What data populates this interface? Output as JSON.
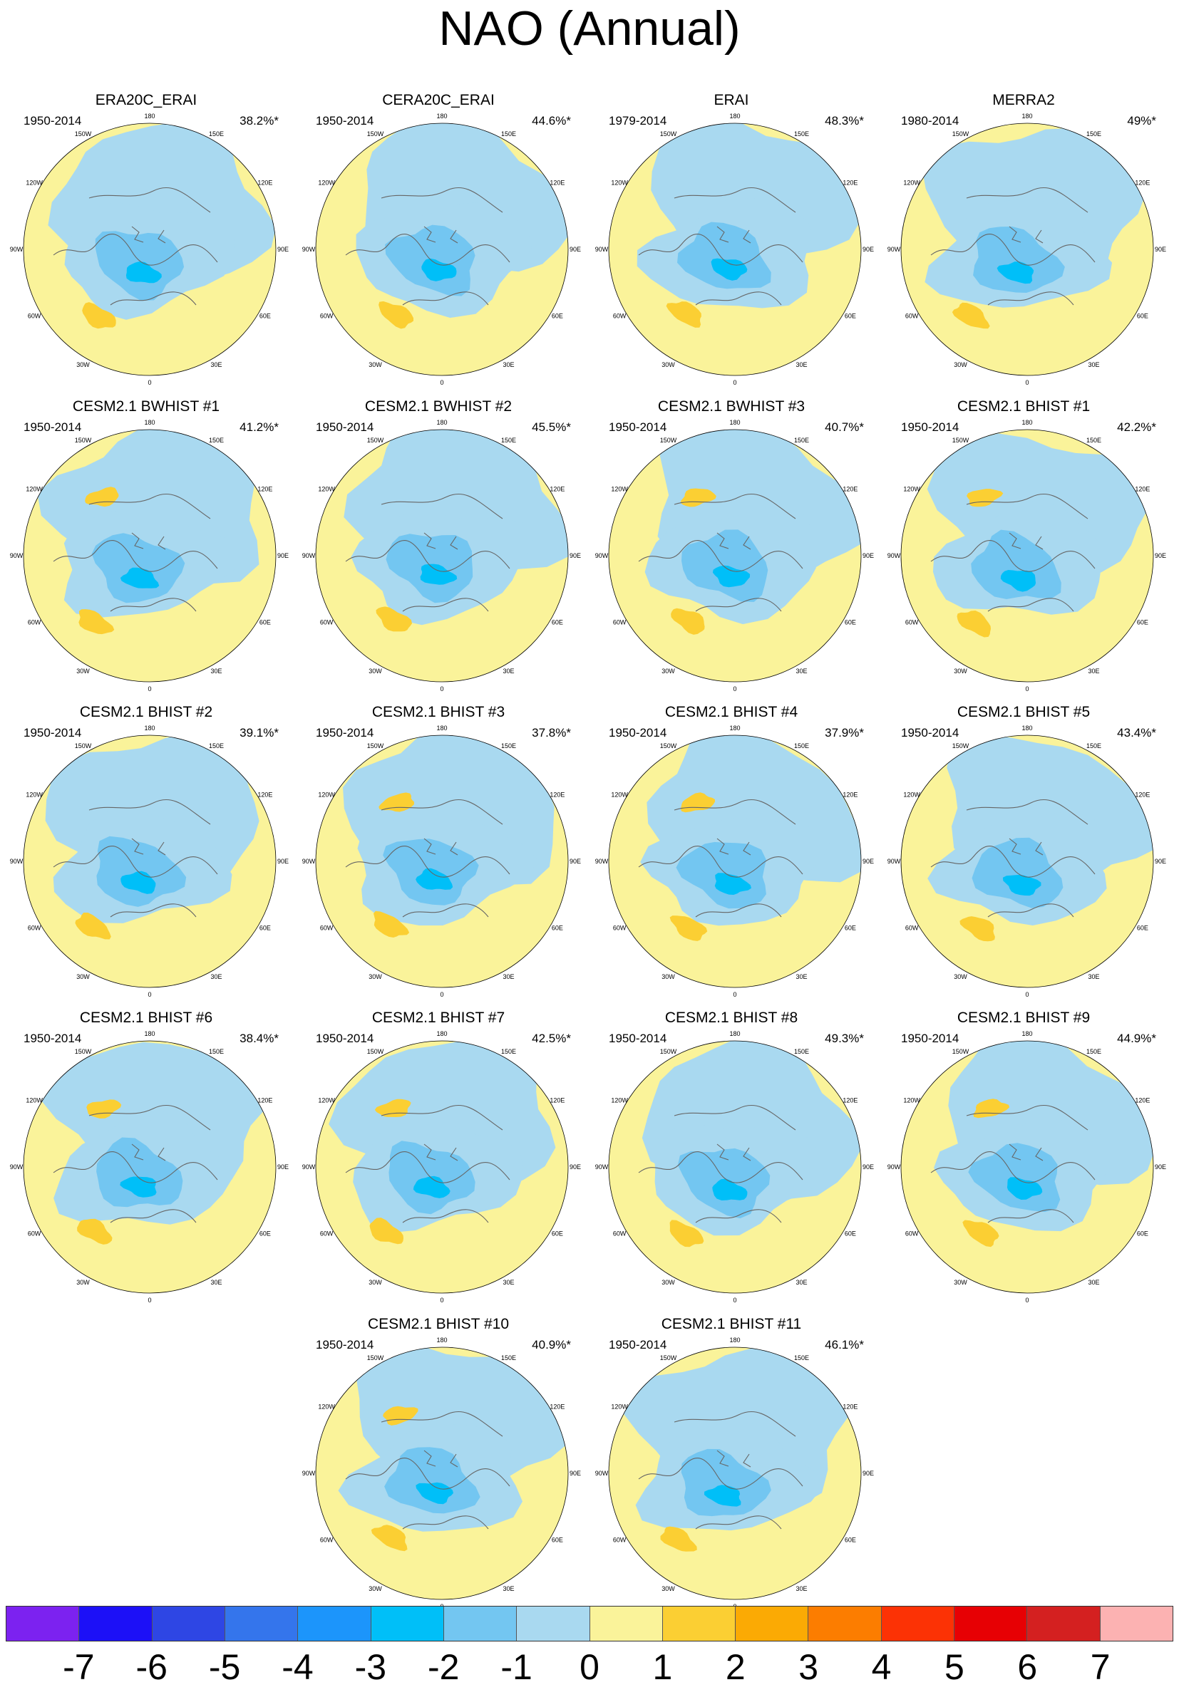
{
  "title": "NAO (Annual)",
  "longitude_labels": [
    "180",
    "150E",
    "120E",
    "90E",
    "60E",
    "30E",
    "0",
    "30W",
    "60W",
    "90W",
    "120W",
    "150W"
  ],
  "panels": [
    {
      "title": "ERA20C_ERAI",
      "years": "1950-2014",
      "variance": "38.2%*"
    },
    {
      "title": "CERA20C_ERAI",
      "years": "1950-2014",
      "variance": "44.6%*"
    },
    {
      "title": "ERAI",
      "years": "1979-2014",
      "variance": "48.3%*"
    },
    {
      "title": "MERRA2",
      "years": "1980-2014",
      "variance": "49%*"
    },
    {
      "title": "CESM2.1 BWHIST #1",
      "years": "1950-2014",
      "variance": "41.2%*"
    },
    {
      "title": "CESM2.1 BWHIST #2",
      "years": "1950-2014",
      "variance": "45.5%*"
    },
    {
      "title": "CESM2.1 BWHIST #3",
      "years": "1950-2014",
      "variance": "40.7%*"
    },
    {
      "title": "CESM2.1 BHIST #1",
      "years": "1950-2014",
      "variance": "42.2%*"
    },
    {
      "title": "CESM2.1 BHIST #2",
      "years": "1950-2014",
      "variance": "39.1%*"
    },
    {
      "title": "CESM2.1 BHIST #3",
      "years": "1950-2014",
      "variance": "37.8%*"
    },
    {
      "title": "CESM2.1 BHIST #4",
      "years": "1950-2014",
      "variance": "37.9%*"
    },
    {
      "title": "CESM2.1 BHIST #5",
      "years": "1950-2014",
      "variance": "43.4%*"
    },
    {
      "title": "CESM2.1 BHIST #6",
      "years": "1950-2014",
      "variance": "38.4%*"
    },
    {
      "title": "CESM2.1 BHIST #7",
      "years": "1950-2014",
      "variance": "42.5%*"
    },
    {
      "title": "CESM2.1 BHIST #8",
      "years": "1950-2014",
      "variance": "49.3%*"
    },
    {
      "title": "CESM2.1 BHIST #9",
      "years": "1950-2014",
      "variance": "44.9%*"
    },
    {
      "title": "CESM2.1 BHIST #10",
      "years": "1950-2014",
      "variance": "40.9%*"
    },
    {
      "title": "CESM2.1 BHIST #11",
      "years": "1950-2014",
      "variance": "46.1%*"
    }
  ],
  "colorbar": {
    "ticks": [
      "-7",
      "-6",
      "-5",
      "-4",
      "-3",
      "-2",
      "-1",
      "0",
      "1",
      "2",
      "3",
      "4",
      "5",
      "6",
      "7"
    ],
    "colors": [
      "#7c22f0",
      "#1c10f7",
      "#2e46e4",
      "#3475ec",
      "#1c95fb",
      "#00bff8",
      "#73c6f1",
      "#a9d9f0",
      "#faf39a",
      "#fbcf33",
      "#fbaa04",
      "#fc7d00",
      "#fc3205",
      "#e70004",
      "#d42020",
      "#fcb2b2"
    ]
  },
  "colors": {
    "neg_light": "#a9d9f0",
    "neg_mid": "#73c6f1",
    "neg_strong": "#00bff8",
    "pos_light": "#faf39a",
    "pos_mid": "#fbcf33",
    "coast": "#666666"
  }
}
